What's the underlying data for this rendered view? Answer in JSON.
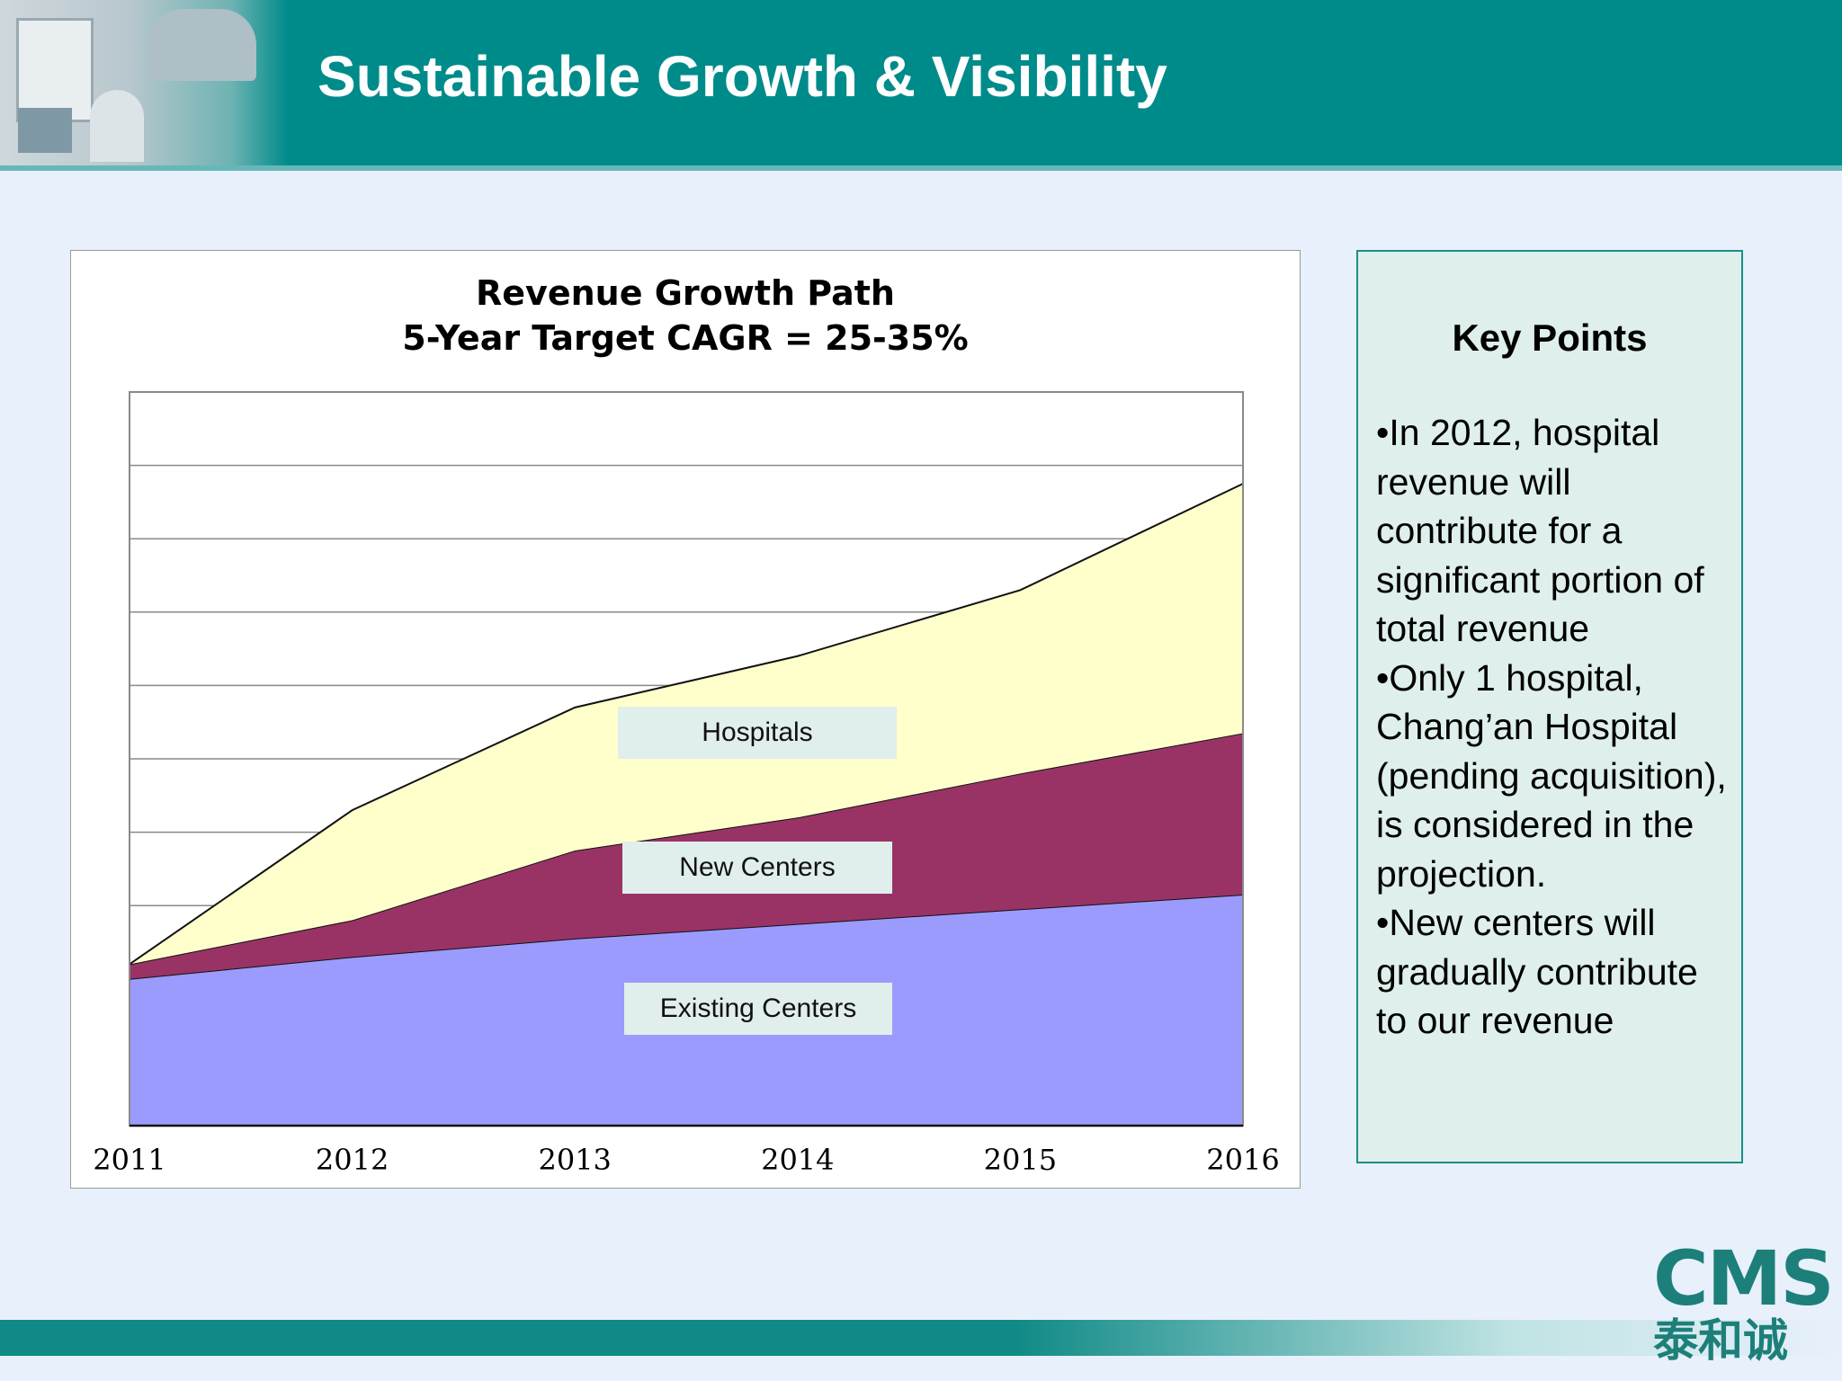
{
  "header": {
    "title": "Sustainable Growth & Visibility"
  },
  "chart_data": {
    "type": "area",
    "stacked": true,
    "title": "Revenue Growth Path",
    "subtitle": "5-Year Target CAGR = 25-35%",
    "categories": [
      "2011",
      "2012",
      "2013",
      "2014",
      "2015",
      "2016"
    ],
    "ylim": [
      0,
      10
    ],
    "grid": true,
    "series": [
      {
        "name": "Existing Centers",
        "values": [
          2.0,
          2.3,
          2.55,
          2.75,
          2.95,
          3.15
        ],
        "color": "#9b9bfd"
      },
      {
        "name": "New Centers",
        "values": [
          0.2,
          0.5,
          1.2,
          1.45,
          1.85,
          2.2
        ],
        "color": "#993366"
      },
      {
        "name": "Hospitals",
        "values": [
          0.0,
          1.5,
          1.95,
          2.2,
          2.5,
          3.4
        ],
        "color": "#ffffcc"
      }
    ],
    "labels": [
      {
        "series": "Hospitals",
        "text": "Hospitals"
      },
      {
        "series": "New Centers",
        "text": "New Centers"
      },
      {
        "series": "Existing Centers",
        "text": "Existing Centers"
      }
    ]
  },
  "key_points": {
    "title": "Key Points",
    "items": [
      "•In 2012, hospital revenue will contribute for a significant portion of total revenue",
      "•Only 1 hospital, Chang’an Hospital (pending acquisition), is considered in the projection.",
      "•New centers will gradually contribute to our revenue"
    ]
  },
  "logo": {
    "text": "CMS",
    "subtext": "泰和诚"
  }
}
